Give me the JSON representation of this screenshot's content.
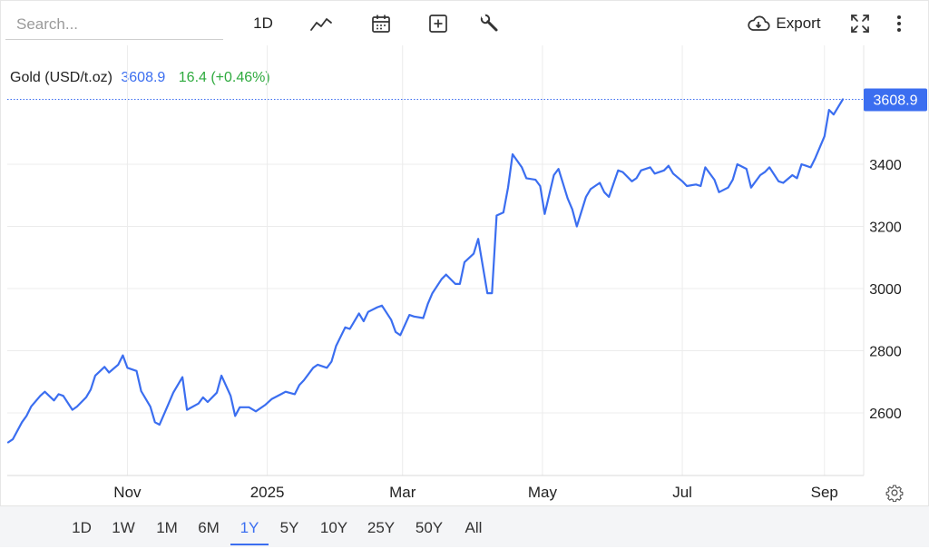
{
  "toolbar": {
    "search_placeholder": "Search...",
    "interval_label": "1D",
    "export_label": "Export",
    "icons": [
      "line-chart-icon",
      "calendar-icon",
      "plus-box-icon",
      "wrench-icon",
      "cloud-download-icon",
      "fullscreen-icon",
      "more-vertical-icon"
    ]
  },
  "legend": {
    "name": "Gold (USD/t.oz)",
    "price": "3608.9",
    "change": "16.4 (+0.46%)"
  },
  "ranges": [
    "1D",
    "1W",
    "1M",
    "6M",
    "1Y",
    "5Y",
    "10Y",
    "25Y",
    "50Y",
    "All"
  ],
  "active_range": "1Y",
  "colors": {
    "line": "#3b6ef0",
    "accent": "#3b6ef0",
    "positive": "#2eaa3e",
    "grid": "#ececec"
  },
  "chart_data": {
    "type": "line",
    "title": "",
    "xlabel": "",
    "ylabel": "",
    "x_tick_labels": [
      "Nov",
      "2025",
      "Mar",
      "May",
      "Jul",
      "Sep"
    ],
    "y_ticks": [
      2600,
      2800,
      3000,
      3200,
      3400
    ],
    "ylim": [
      2400,
      3600
    ],
    "last_value_label": "3608.9",
    "grid": true,
    "series": [
      {
        "x": [
          "2024-09-10",
          "2024-09-12",
          "2024-09-16",
          "2024-09-18",
          "2024-09-20",
          "2024-09-24",
          "2024-09-26",
          "2024-09-30",
          "2024-10-02",
          "2024-10-04",
          "2024-10-08",
          "2024-10-10",
          "2024-10-14",
          "2024-10-16",
          "2024-10-18",
          "2024-10-22",
          "2024-10-24",
          "2024-10-28",
          "2024-10-30",
          "2024-11-01",
          "2024-11-05",
          "2024-11-07",
          "2024-11-11",
          "2024-11-13",
          "2024-11-15",
          "2024-11-19",
          "2024-11-21",
          "2024-11-25",
          "2024-11-27",
          "2024-12-02",
          "2024-12-04",
          "2024-12-06",
          "2024-12-10",
          "2024-12-12",
          "2024-12-16",
          "2024-12-18",
          "2024-12-20",
          "2024-12-24",
          "2024-12-27",
          "2024-12-31",
          "2025-01-03",
          "2025-01-07",
          "2025-01-09",
          "2025-01-13",
          "2025-01-15",
          "2025-01-17",
          "2025-01-21",
          "2025-01-23",
          "2025-01-27",
          "2025-01-29",
          "2025-01-31",
          "2025-02-04",
          "2025-02-06",
          "2025-02-10",
          "2025-02-12",
          "2025-02-14",
          "2025-02-18",
          "2025-02-20",
          "2025-02-24",
          "2025-02-26",
          "2025-02-28",
          "2025-03-04",
          "2025-03-06",
          "2025-03-10",
          "2025-03-12",
          "2025-03-14",
          "2025-03-18",
          "2025-03-20",
          "2025-03-24",
          "2025-03-26",
          "2025-03-28",
          "2025-04-01",
          "2025-04-03",
          "2025-04-07",
          "2025-04-09",
          "2025-04-11",
          "2025-04-14",
          "2025-04-16",
          "2025-04-18",
          "2025-04-22",
          "2025-04-24",
          "2025-04-28",
          "2025-04-30",
          "2025-05-02",
          "2025-05-06",
          "2025-05-08",
          "2025-05-12",
          "2025-05-14",
          "2025-05-16",
          "2025-05-20",
          "2025-05-22",
          "2025-05-26",
          "2025-05-28",
          "2025-05-30",
          "2025-06-03",
          "2025-06-05",
          "2025-06-09",
          "2025-06-11",
          "2025-06-13",
          "2025-06-17",
          "2025-06-19",
          "2025-06-23",
          "2025-06-25",
          "2025-06-27",
          "2025-07-01",
          "2025-07-03",
          "2025-07-07",
          "2025-07-09",
          "2025-07-11",
          "2025-07-15",
          "2025-07-17",
          "2025-07-21",
          "2025-07-23",
          "2025-07-25",
          "2025-07-29",
          "2025-07-31",
          "2025-08-04",
          "2025-08-06",
          "2025-08-08",
          "2025-08-12",
          "2025-08-14",
          "2025-08-18",
          "2025-08-20",
          "2025-08-22",
          "2025-08-26",
          "2025-08-28",
          "2025-09-01",
          "2025-09-03",
          "2025-09-05",
          "2025-09-09"
        ],
        "values": [
          2505,
          2515,
          2570,
          2590,
          2620,
          2655,
          2668,
          2640,
          2660,
          2655,
          2610,
          2620,
          2650,
          2675,
          2720,
          2748,
          2730,
          2755,
          2785,
          2745,
          2735,
          2670,
          2620,
          2570,
          2562,
          2630,
          2665,
          2715,
          2610,
          2630,
          2650,
          2635,
          2665,
          2720,
          2655,
          2590,
          2618,
          2618,
          2605,
          2625,
          2645,
          2660,
          2668,
          2660,
          2690,
          2705,
          2745,
          2755,
          2745,
          2765,
          2815,
          2875,
          2870,
          2920,
          2895,
          2925,
          2940,
          2945,
          2900,
          2860,
          2850,
          2915,
          2910,
          2905,
          2950,
          2985,
          3030,
          3045,
          3015,
          3015,
          3085,
          3112,
          3160,
          2985,
          2985,
          3235,
          3245,
          3325,
          3432,
          3390,
          3355,
          3350,
          3330,
          3240,
          3365,
          3385,
          3290,
          3255,
          3200,
          3295,
          3320,
          3340,
          3310,
          3295,
          3380,
          3375,
          3345,
          3355,
          3380,
          3390,
          3370,
          3380,
          3395,
          3370,
          3345,
          3330,
          3335,
          3330,
          3390,
          3350,
          3310,
          3325,
          3350,
          3400,
          3385,
          3325,
          3365,
          3375,
          3390,
          3345,
          3340,
          3365,
          3355,
          3400,
          3390,
          3420,
          3490,
          3575,
          3560,
          3608.9
        ]
      }
    ]
  }
}
